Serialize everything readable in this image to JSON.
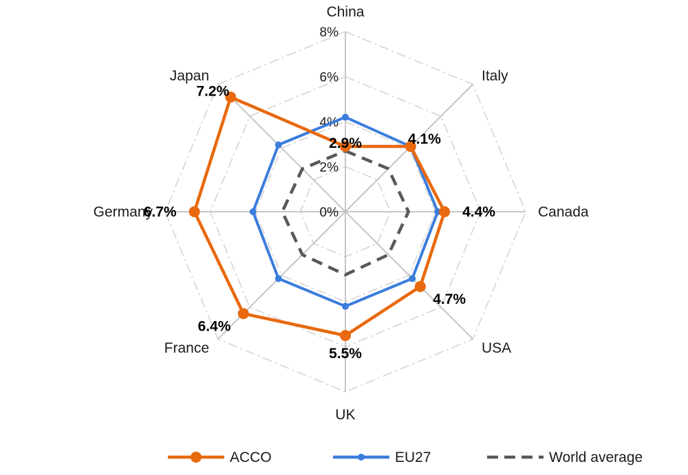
{
  "chart_data": {
    "type": "radar",
    "title": "",
    "categories": [
      "China",
      "Italy",
      "Canada",
      "USA",
      "UK",
      "France",
      "Germany",
      "Japan"
    ],
    "r_ticks": [
      "0%",
      "2%",
      "4%",
      "6%",
      "8%"
    ],
    "r_range": [
      0,
      8
    ],
    "grid": true,
    "legend_position": "bottom",
    "series": [
      {
        "name": "ACCO",
        "values": [
          2.9,
          4.1,
          4.4,
          4.7,
          5.5,
          6.4,
          6.7,
          7.2
        ],
        "data_labels": [
          "2.9%",
          "4.1%",
          "4.4%",
          "4.7%",
          "5.5%",
          "6.4%",
          "6.7%",
          "7.2%"
        ],
        "color": "#e8690e",
        "style": "solid-large-markers"
      },
      {
        "name": "EU27",
        "values": [
          4.2,
          4.1,
          4.1,
          4.2,
          4.2,
          4.2,
          4.1,
          4.2
        ],
        "color": "#3b7ddd",
        "style": "solid-small-markers"
      },
      {
        "name": "World average",
        "values": [
          2.7,
          2.7,
          2.8,
          2.7,
          2.8,
          2.7,
          2.8,
          2.7
        ],
        "color": "#595959",
        "style": "dashed"
      }
    ]
  }
}
